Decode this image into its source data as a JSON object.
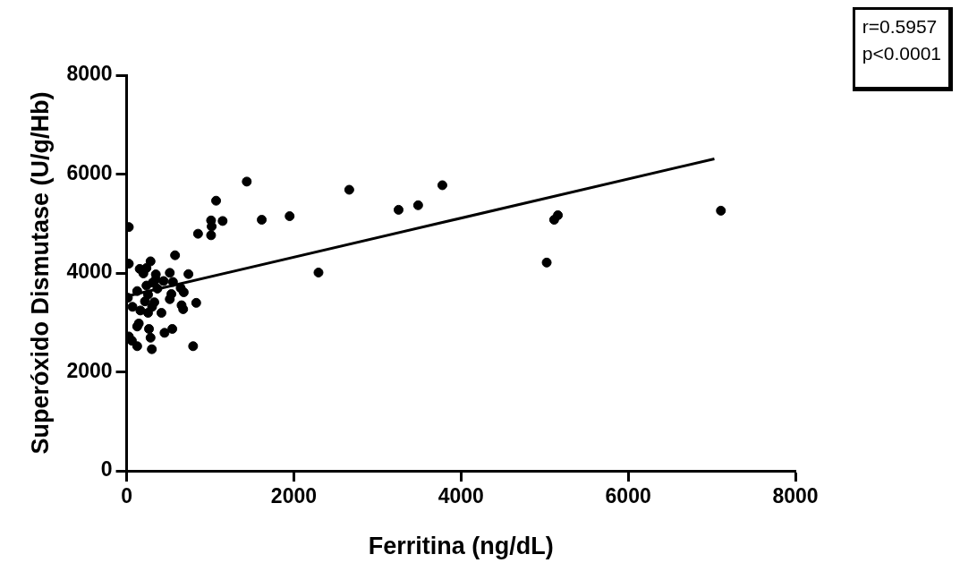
{
  "chart_data": {
    "type": "scatter",
    "xlabel": "Ferritina (ng/dL)",
    "ylabel": "Superóxido Dismutase (U/g/Hb)",
    "xlim": [
      0,
      8000
    ],
    "ylim": [
      0,
      8000
    ],
    "xticks": [
      0,
      2000,
      4000,
      6000,
      8000
    ],
    "yticks": [
      0,
      2000,
      4000,
      6000,
      8000
    ],
    "grid": false,
    "legend": false,
    "marker": "circle",
    "annotations": [
      "r=0.5957",
      "p<0.0001"
    ],
    "series": [
      {
        "color": "#000000",
        "x": [
          1437,
          1616,
          1950,
          2295,
          2663,
          3253,
          3487,
          3777,
          5025,
          5114,
          5159,
          7109,
          26,
          1010,
          1148,
          1017,
          854,
          1010,
          1070,
          579,
          26,
          286,
          156,
          237,
          200,
          349,
          516,
          739,
          312,
          442,
          554,
          646,
          368,
          126,
          15,
          256,
          683,
          535,
          70,
          219,
          331,
          516,
          832,
          657,
          676,
          164,
          256,
          416,
          304,
          145,
          126,
          267,
          546,
          453,
          26,
          286,
          63,
          126,
          795,
          301,
          349,
          237
        ],
        "values": [
          5848,
          5076,
          5149,
          4009,
          5683,
          5278,
          5370,
          5775,
          4211,
          5076,
          5168,
          5260,
          4929,
          5063,
          5052,
          4941,
          4794,
          4763,
          5462,
          4359,
          4188,
          4236,
          4083,
          4101,
          3991,
          3972,
          4003,
          3978,
          3807,
          3838,
          3820,
          3697,
          3684,
          3635,
          3500,
          3562,
          3610,
          3574,
          3316,
          3426,
          3408,
          3470,
          3396,
          3347,
          3268,
          3242,
          3194,
          3194,
          3316,
          2979,
          2918,
          2869,
          2869,
          2790,
          2716,
          2691,
          2630,
          2520,
          2520,
          2459,
          3868,
          3746
        ]
      },
      {
        "type": "line",
        "color": "#000000",
        "marker": "none",
        "line_style": "solid",
        "x": [
          0,
          7031
        ],
        "values": [
          3530,
          6308
        ]
      }
    ]
  }
}
